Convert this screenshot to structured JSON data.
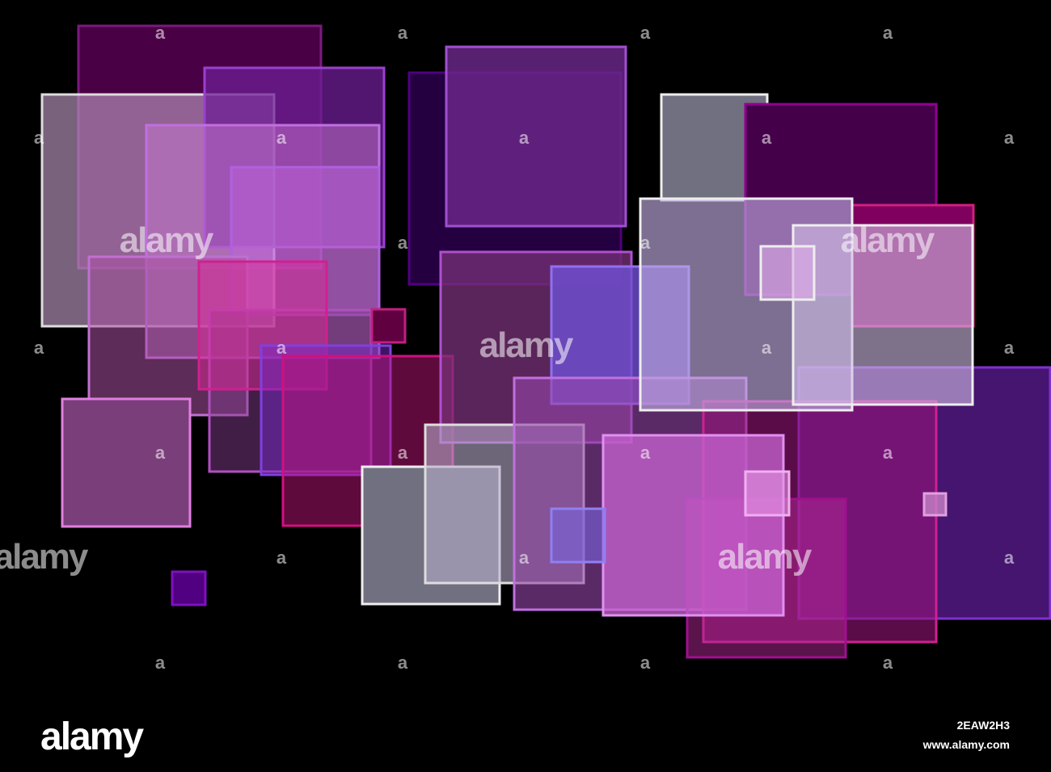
{
  "watermark": "alamy",
  "watermark_mark": "a",
  "footer": {
    "logo": "alamy",
    "image_id": "2EAW2H3",
    "url": "www.alamy.com"
  }
}
